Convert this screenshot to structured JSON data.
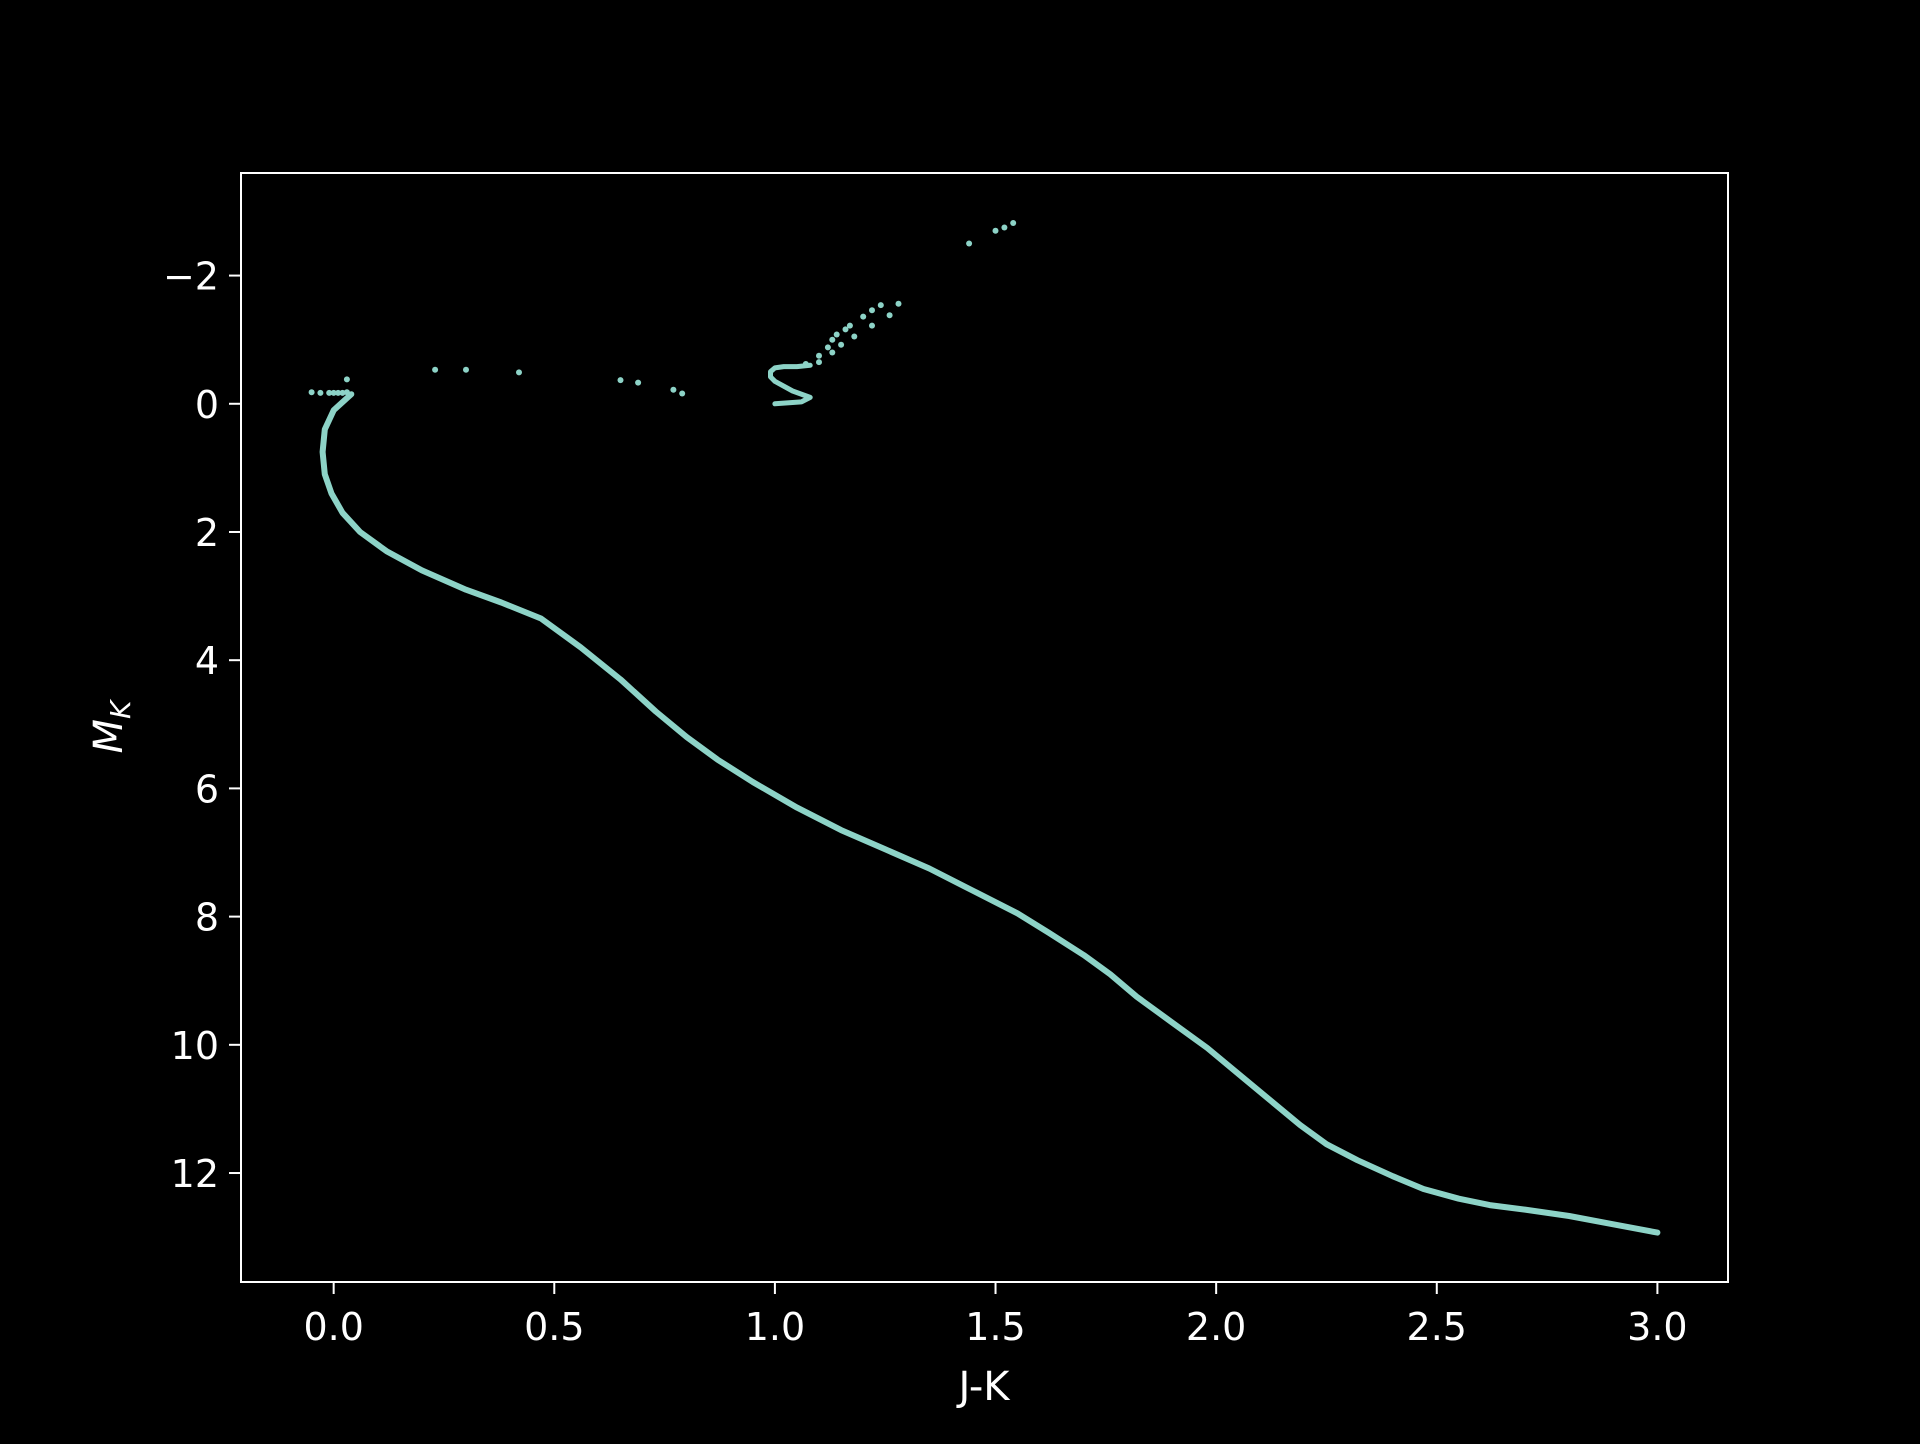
{
  "chart_data": {
    "type": "scatter",
    "title": "",
    "xlabel": "J-K",
    "ylabel_main": "M",
    "ylabel_sub": "K",
    "xlim": [
      -0.21,
      3.16
    ],
    "ylim": [
      13.7,
      -3.6
    ],
    "y_inverted": true,
    "grid": false,
    "legend": "none",
    "x_ticks": [
      {
        "value": 0.0,
        "label": "0.0"
      },
      {
        "value": 0.5,
        "label": "0.5"
      },
      {
        "value": 1.0,
        "label": "1.0"
      },
      {
        "value": 1.5,
        "label": "1.5"
      },
      {
        "value": 2.0,
        "label": "2.0"
      },
      {
        "value": 2.5,
        "label": "2.5"
      },
      {
        "value": 3.0,
        "label": "3.0"
      }
    ],
    "y_ticks": [
      {
        "value": -2,
        "label": "−2"
      },
      {
        "value": 0,
        "label": "0"
      },
      {
        "value": 2,
        "label": "2"
      },
      {
        "value": 4,
        "label": "4"
      },
      {
        "value": 6,
        "label": "6"
      },
      {
        "value": 8,
        "label": "8"
      },
      {
        "value": 10,
        "label": "10"
      },
      {
        "value": 12,
        "label": "12"
      }
    ],
    "colors": {
      "background": "#000000",
      "axes": "#ffffff",
      "marker": "#8dd3c7"
    },
    "main_sequence": {
      "x": [
        0.04,
        0.0,
        -0.02,
        -0.025,
        -0.02,
        -0.005,
        0.02,
        0.06,
        0.12,
        0.2,
        0.3,
        0.38,
        0.47,
        0.56,
        0.65,
        0.73,
        0.8,
        0.87,
        0.95,
        1.05,
        1.15,
        1.25,
        1.35,
        1.45,
        1.55,
        1.62,
        1.7,
        1.76,
        1.82,
        1.9,
        1.98,
        2.05,
        2.12,
        2.19,
        2.25,
        2.32,
        2.4,
        2.47,
        2.55,
        2.62,
        2.7,
        2.8,
        2.9,
        3.0
      ],
      "y": [
        -0.15,
        0.1,
        0.4,
        0.75,
        1.1,
        1.4,
        1.7,
        2.0,
        2.3,
        2.6,
        2.9,
        3.1,
        3.35,
        3.8,
        4.3,
        4.8,
        5.2,
        5.55,
        5.9,
        6.3,
        6.65,
        6.95,
        7.25,
        7.6,
        7.95,
        8.25,
        8.6,
        8.9,
        9.25,
        9.65,
        10.05,
        10.45,
        10.85,
        11.25,
        11.55,
        11.8,
        12.05,
        12.25,
        12.4,
        12.5,
        12.57,
        12.67,
        12.8,
        12.93
      ]
    },
    "red_clump_loop": {
      "x": [
        1.0,
        1.06,
        1.08,
        1.04,
        1.0,
        0.99,
        0.99,
        1.0,
        1.02,
        1.05,
        1.08
      ],
      "y": [
        0.0,
        -0.03,
        -0.1,
        -0.2,
        -0.35,
        -0.42,
        -0.5,
        -0.56,
        -0.58,
        -0.58,
        -0.6
      ]
    },
    "scatter_points": {
      "x": [
        -0.05,
        -0.03,
        -0.01,
        0.0,
        0.01,
        0.02,
        0.03,
        0.03,
        0.23,
        0.3,
        0.42,
        0.65,
        0.69,
        0.77,
        0.79,
        1.07,
        1.1,
        1.12,
        1.13,
        1.14,
        1.16,
        1.17,
        1.2,
        1.22,
        1.24,
        1.1,
        1.13,
        1.15,
        1.18,
        1.22,
        1.26,
        1.28,
        1.44,
        1.5,
        1.52,
        1.54
      ],
      "y": [
        -0.18,
        -0.17,
        -0.17,
        -0.17,
        -0.17,
        -0.17,
        -0.18,
        -0.38,
        -0.53,
        -0.53,
        -0.49,
        -0.37,
        -0.33,
        -0.22,
        -0.16,
        -0.62,
        -0.75,
        -0.88,
        -1.0,
        -1.08,
        -1.16,
        -1.22,
        -1.36,
        -1.46,
        -1.54,
        -0.65,
        -0.8,
        -0.92,
        -1.05,
        -1.22,
        -1.38,
        -1.56,
        -2.5,
        -2.7,
        -2.75,
        -2.82
      ]
    }
  }
}
